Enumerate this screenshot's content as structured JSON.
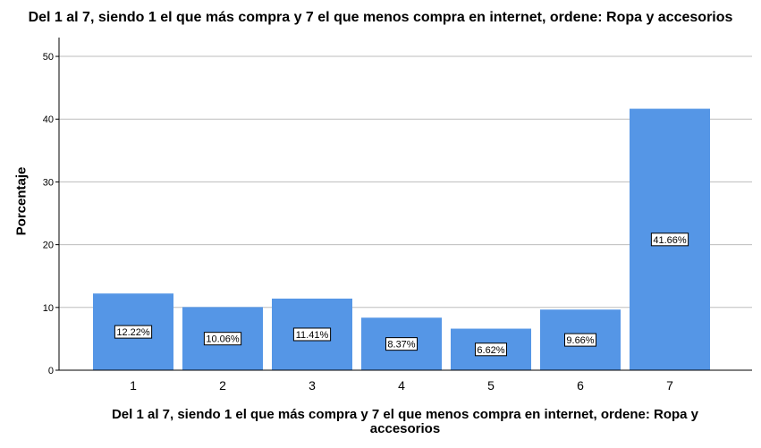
{
  "chart_data": {
    "type": "bar",
    "title": "Del 1 al 7, siendo 1 el que más compra y 7 el que menos compra en internet, ordene: Ropa y accesorios",
    "xlabel": "Del 1 al 7, siendo 1 el que más compra y 7 el que menos compra en internet, ordene: Ropa y accesorios",
    "ylabel": "Porcentaje",
    "categories": [
      "1",
      "2",
      "3",
      "4",
      "5",
      "6",
      "7"
    ],
    "values": [
      12.22,
      10.06,
      11.41,
      8.37,
      6.62,
      9.66,
      41.66
    ],
    "data_labels": [
      "12.22%",
      "10.06%",
      "11.41%",
      "8.37%",
      "6.62%",
      "9.66%",
      "41.66%"
    ],
    "ylim": [
      0,
      53
    ],
    "yticks": [
      0,
      10,
      20,
      30,
      40,
      50
    ],
    "ytick_labels": [
      "0",
      "10",
      "20",
      "30",
      "40",
      "50"
    ],
    "grid": true,
    "colors": {
      "bar": "#5596e6",
      "grid": "#bdbdbd",
      "axis": "#000000",
      "label_box": "#ffffff"
    }
  }
}
